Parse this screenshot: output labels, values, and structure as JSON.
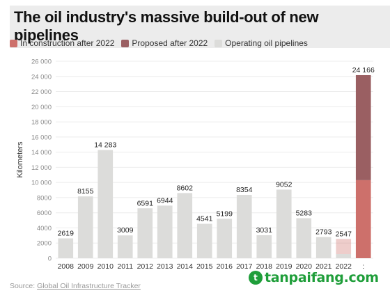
{
  "header": {
    "title": "The oil industry's massive build-out of new pipelines"
  },
  "legend": [
    {
      "label": "In construction after 2022",
      "color": "#cd706b"
    },
    {
      "label": "Proposed after 2022",
      "color": "#9a5f62"
    },
    {
      "label": "Operating oil pipelines",
      "color": "#dcdcda"
    }
  ],
  "footer": {
    "source_prefix": "Source: ",
    "source_link": "Global Oil Infrastructure Tracker"
  },
  "brand": {
    "logo": "t",
    "text": "tanpaifang.com"
  },
  "chart_data": {
    "type": "bar",
    "ylabel": "Kilometers",
    "ylim": [
      0,
      26000
    ],
    "yticks": [
      0,
      2000,
      4000,
      6000,
      8000,
      10000,
      12000,
      14000,
      16000,
      18000,
      20000,
      22000,
      24000,
      26000
    ],
    "ytick_labels": [
      "0",
      "2000",
      "4000",
      "6000",
      "8000",
      "10 000",
      "12 000",
      "14 000",
      "16 000",
      "18 000",
      "20 000",
      "22 000",
      "24 000",
      "26 000"
    ],
    "categories": [
      "2008",
      "2009",
      "2010",
      "2011",
      "2012",
      "2013",
      "2014",
      "2015",
      "2016",
      "2017",
      "2018",
      "2019",
      "2020",
      "2021",
      "2022",
      ":"
    ],
    "series": [
      {
        "name": "Operating oil pipelines",
        "values": [
          2619,
          8155,
          14283,
          3009,
          6591,
          6944,
          8602,
          4541,
          5199,
          8354,
          3031,
          9052,
          5283,
          2793,
          550,
          0
        ]
      },
      {
        "name": "In construction after 2022",
        "values": [
          0,
          0,
          0,
          0,
          0,
          0,
          0,
          0,
          0,
          0,
          0,
          0,
          0,
          0,
          1997,
          10300
        ]
      },
      {
        "name": "Proposed after 2022",
        "values": [
          0,
          0,
          0,
          0,
          0,
          0,
          0,
          0,
          0,
          0,
          0,
          0,
          0,
          0,
          0,
          13866
        ]
      }
    ],
    "data_labels": [
      "2619",
      "8155",
      "14 283",
      "3009",
      "6591",
      "6944",
      "8602",
      "4541",
      "5199",
      "8354",
      "3031",
      "9052",
      "5283",
      "2793",
      "2547",
      "24 166"
    ],
    "grid": true,
    "legend_position": "top-left"
  }
}
